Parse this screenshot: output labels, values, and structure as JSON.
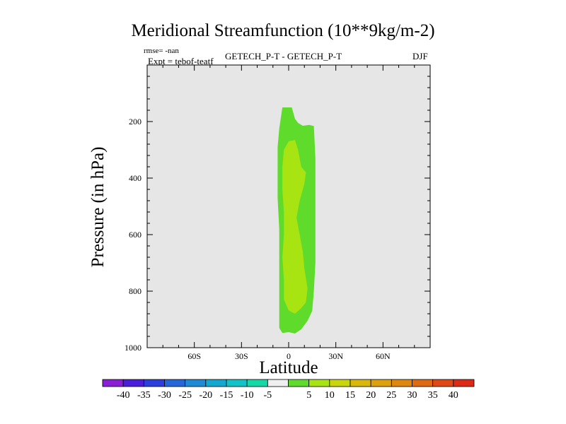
{
  "chart_data": {
    "type": "contour",
    "title": "Meridional Streamfunction (10**9kg/m-2)",
    "subtitle_left_1": "rmse= -nan",
    "subtitle_left_2": "Expt = tebof-teatf",
    "subtitle_center": "GETECH_P-T - GETECH_P-T",
    "subtitle_right": "DJF",
    "xlabel": "Latitude",
    "ylabel": "Pressure (in hPa)",
    "xlim": [
      -90,
      90
    ],
    "ylim": [
      1000,
      0
    ],
    "x_ticks": [
      {
        "value": -60,
        "label": "60S"
      },
      {
        "value": -30,
        "label": "30S"
      },
      {
        "value": 0,
        "label": "0"
      },
      {
        "value": 30,
        "label": "30N"
      },
      {
        "value": 60,
        "label": "60N"
      }
    ],
    "y_ticks": [
      {
        "value": 200,
        "label": "200"
      },
      {
        "value": 400,
        "label": "400"
      },
      {
        "value": 600,
        "label": "600"
      },
      {
        "value": 800,
        "label": "800"
      },
      {
        "value": 1000,
        "label": "1000"
      }
    ],
    "plot_background": "#e6e6e6",
    "colorbar": {
      "colors": [
        "#8a1fd6",
        "#4b1edc",
        "#2c3fdc",
        "#2567d9",
        "#1f8bd6",
        "#14a8d1",
        "#0fc3c6",
        "#12d9a6",
        "#efefef",
        "#5fdb2b",
        "#a8e312",
        "#c9d60e",
        "#d9b80d",
        "#dfa00e",
        "#e0870f",
        "#e06a12",
        "#e04816",
        "#dd2a17"
      ],
      "labels": [
        "-40",
        "-35",
        "-30",
        "-25",
        "-20",
        "-15",
        "-10",
        "-5",
        "5",
        "10",
        "15",
        "20",
        "25",
        "30",
        "35",
        "40"
      ]
    },
    "regions": [
      {
        "level": "5 to 10",
        "color": "#5fdb2b",
        "points": [
          [
            -4,
            150
          ],
          [
            2,
            150
          ],
          [
            4,
            190
          ],
          [
            6,
            205
          ],
          [
            9,
            215
          ],
          [
            13,
            212
          ],
          [
            16,
            216
          ],
          [
            17,
            330
          ],
          [
            17,
            520
          ],
          [
            17,
            700
          ],
          [
            16,
            800
          ],
          [
            15,
            870
          ],
          [
            12,
            905
          ],
          [
            8,
            935
          ],
          [
            4,
            950
          ],
          [
            0,
            945
          ],
          [
            -4,
            948
          ],
          [
            -6,
            930
          ],
          [
            -6,
            820
          ],
          [
            -6,
            700
          ],
          [
            -6,
            580
          ],
          [
            -7,
            470
          ],
          [
            -7,
            380
          ],
          [
            -7,
            290
          ],
          [
            -6,
            225
          ]
        ]
      },
      {
        "level": "10 to 15",
        "color": "#a8e312",
        "points": [
          [
            -3,
            300
          ],
          [
            0,
            270
          ],
          [
            4,
            265
          ],
          [
            6,
            300
          ],
          [
            8,
            360
          ],
          [
            11,
            380
          ],
          [
            10,
            420
          ],
          [
            7,
            480
          ],
          [
            5,
            540
          ],
          [
            7,
            600
          ],
          [
            9,
            660
          ],
          [
            10,
            720
          ],
          [
            12,
            790
          ],
          [
            11,
            840
          ],
          [
            8,
            860
          ],
          [
            4,
            880
          ],
          [
            0,
            868
          ],
          [
            -3,
            830
          ],
          [
            -3,
            760
          ],
          [
            -4,
            680
          ],
          [
            -3,
            600
          ],
          [
            -3,
            520
          ],
          [
            -4,
            440
          ],
          [
            -4,
            360
          ]
        ]
      }
    ]
  }
}
